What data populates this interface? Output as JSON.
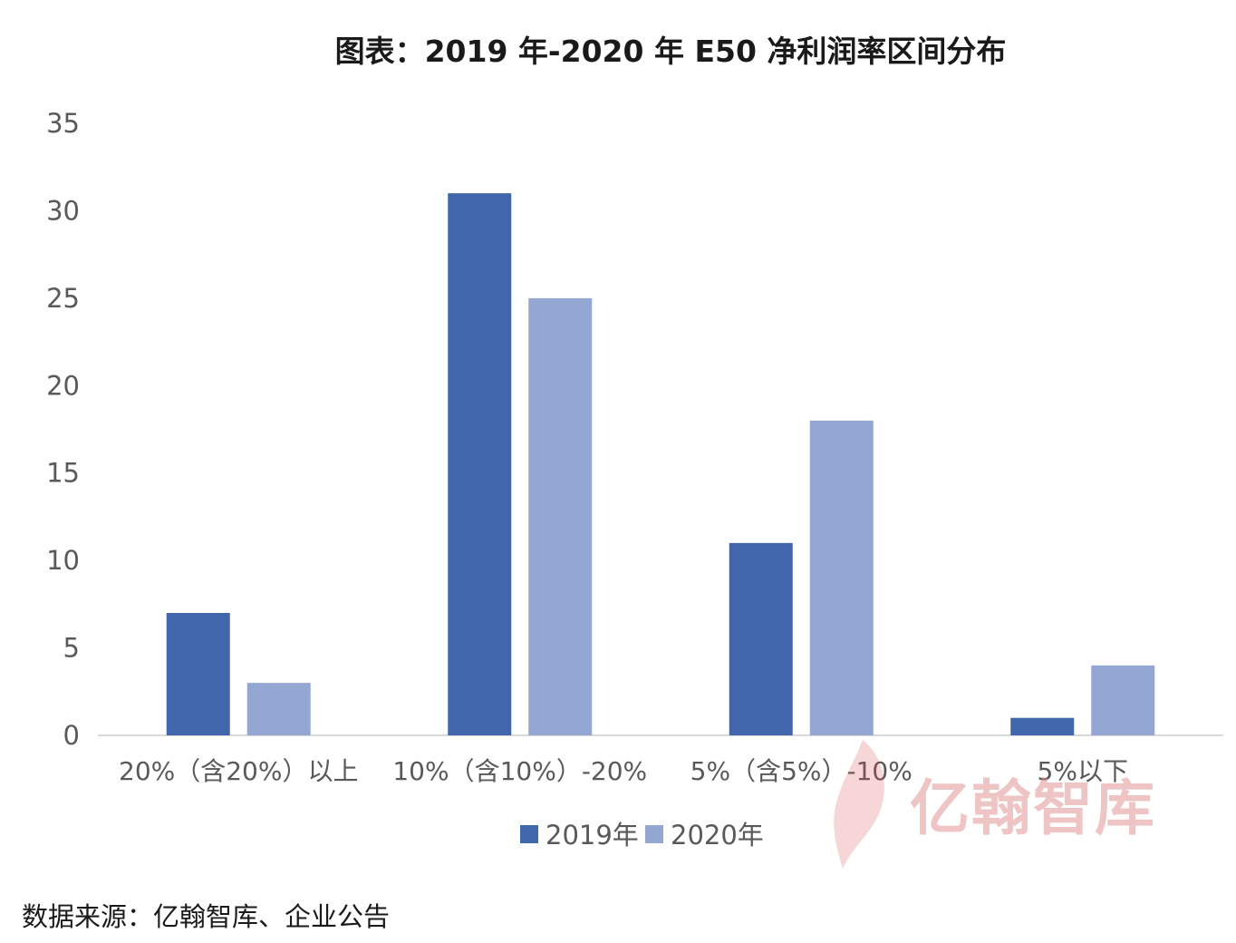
{
  "title": "图表：2019 年-2020 年 E50 净利润率区间分布",
  "source": "数据来源：亿翰智库、企业公告",
  "watermark": "亿翰智库",
  "colors": {
    "s2019": "#4166ac",
    "s2020": "#94a6d2",
    "axis": "#d9d9d9",
    "text": "#595959"
  },
  "chart_data": {
    "type": "bar",
    "categories": [
      "20%（含20%）以上",
      "10%（含10%）-20%",
      "5%（含5%）-10%",
      "5%以下"
    ],
    "series": [
      {
        "name": "2019年",
        "values": [
          7,
          31,
          11,
          1
        ]
      },
      {
        "name": "2020年",
        "values": [
          3,
          25,
          18,
          4
        ]
      }
    ],
    "yticks": [
      0,
      5,
      10,
      15,
      20,
      25,
      30,
      35
    ],
    "ylim": [
      0,
      35
    ],
    "legend": "bottom",
    "grid": false
  }
}
